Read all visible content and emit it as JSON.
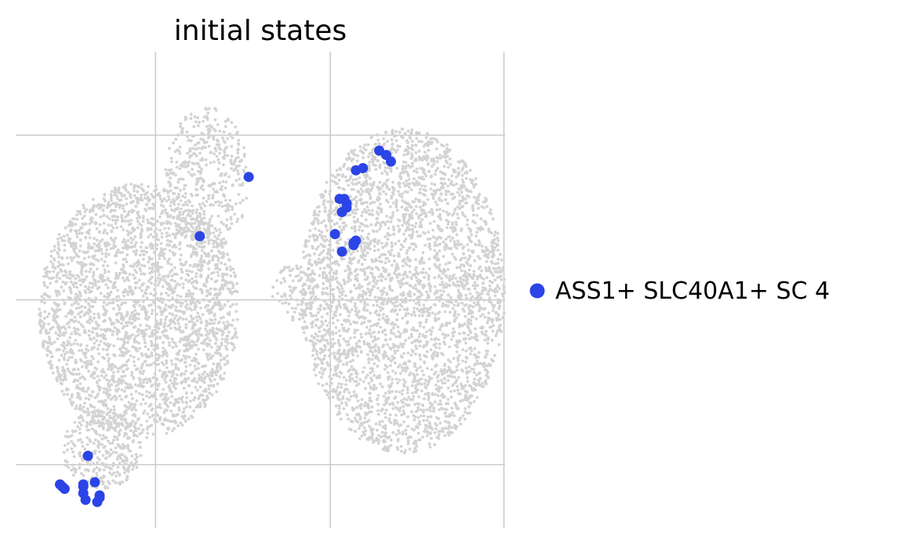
{
  "chart_data": {
    "type": "scatter",
    "title": "initial states",
    "xlabel": "",
    "ylabel": "",
    "xlim": [
      -1,
      20
    ],
    "ylim": [
      -5.4,
      16.3
    ],
    "grid": true,
    "legend_placement": "right",
    "background_color": "#d3d3d3",
    "highlight_color": "#2b44e6",
    "series": [
      {
        "name": "ASS1+ SLC40A1+ SC 4",
        "color": "#2b44e6",
        "x": [
          14.6,
          15.1,
          14.9,
          13.6,
          13.9,
          12.9,
          13.2,
          13.2,
          13.0,
          13.1,
          12.7,
          13.5,
          13.6,
          13.5,
          13.0,
          9.0,
          6.9,
          2.1,
          1.9,
          2.4,
          1.9,
          1.9,
          2.0,
          2.6,
          2.5,
          2.6,
          1.0,
          1.1,
          0.9
        ],
        "y": [
          11.8,
          11.3,
          11.6,
          10.9,
          11.0,
          9.6,
          9.4,
          9.2,
          9.0,
          9.6,
          8.0,
          7.6,
          7.7,
          7.5,
          7.2,
          10.6,
          7.9,
          -2.1,
          -3.8,
          -3.3,
          -3.4,
          -3.5,
          -4.1,
          -3.9,
          -4.2,
          -4.0,
          -3.5,
          -3.6,
          -3.4
        ]
      }
    ],
    "background_regions": [
      {
        "cx": 4.3,
        "cy": 4.5,
        "rx": 4.3,
        "ry": 5.8,
        "n": 2800
      },
      {
        "cx": 2.7,
        "cy": -1.8,
        "rx": 1.7,
        "ry": 1.8,
        "n": 300
      },
      {
        "cx": 7.2,
        "cy": 10.5,
        "rx": 1.8,
        "ry": 3.3,
        "n": 420
      },
      {
        "cx": 15.6,
        "cy": 5.4,
        "rx": 4.4,
        "ry": 7.4,
        "n": 3400
      },
      {
        "cx": 10.9,
        "cy": 5.3,
        "rx": 0.9,
        "ry": 1.3,
        "n": 90
      }
    ]
  }
}
